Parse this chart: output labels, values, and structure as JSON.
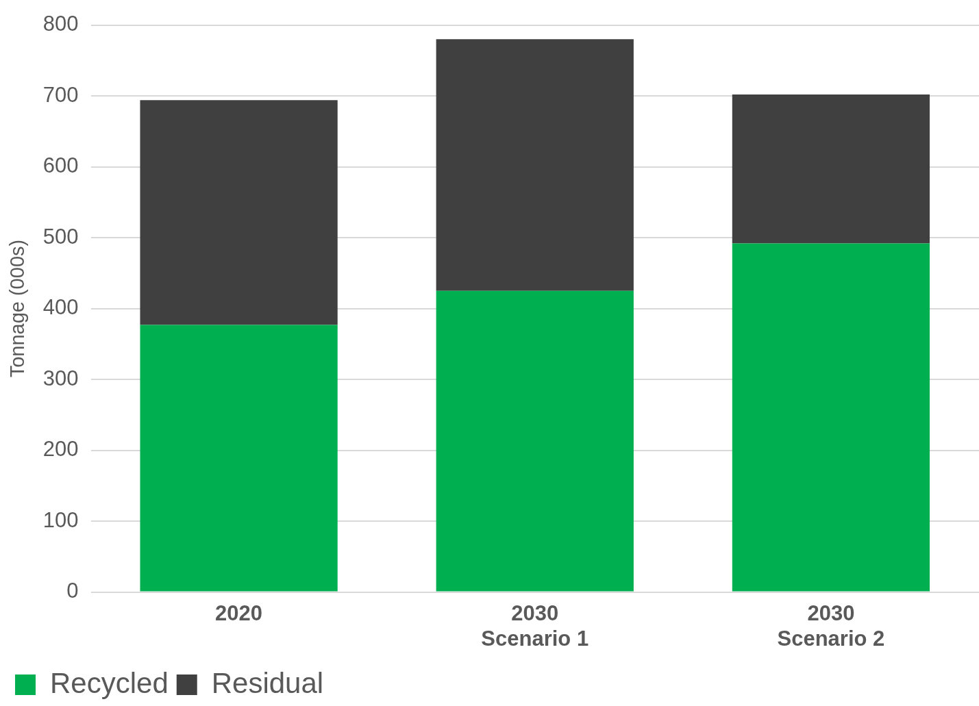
{
  "chart_data": {
    "type": "bar",
    "ylabel": "Tonnage (000s)",
    "categories": [
      "2020",
      "2030\nScenario 1",
      "2030\nScenario 2"
    ],
    "stacked": true,
    "series": [
      {
        "name": "Recycled",
        "color": "#00b050",
        "values": [
          377,
          425,
          492
        ]
      },
      {
        "name": "Residual",
        "color": "#404040",
        "values": [
          317,
          355,
          210
        ]
      }
    ],
    "ylim": [
      0,
      800
    ],
    "yticks": [
      0,
      100,
      200,
      300,
      400,
      500,
      600,
      700,
      800
    ],
    "grid": "y",
    "legend": "bottom left"
  }
}
